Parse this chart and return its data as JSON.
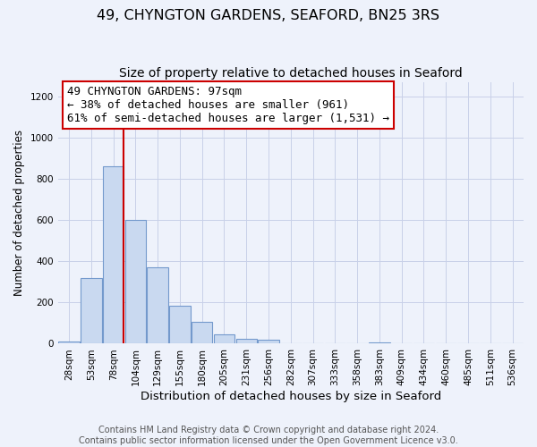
{
  "title": "49, CHYNGTON GARDENS, SEAFORD, BN25 3RS",
  "subtitle": "Size of property relative to detached houses in Seaford",
  "xlabel": "Distribution of detached houses by size in Seaford",
  "ylabel": "Number of detached properties",
  "bin_labels": [
    "28sqm",
    "53sqm",
    "78sqm",
    "104sqm",
    "129sqm",
    "155sqm",
    "180sqm",
    "205sqm",
    "231sqm",
    "256sqm",
    "282sqm",
    "307sqm",
    "333sqm",
    "358sqm",
    "383sqm",
    "409sqm",
    "434sqm",
    "460sqm",
    "485sqm",
    "511sqm",
    "536sqm"
  ],
  "bar_values": [
    12,
    320,
    860,
    600,
    370,
    185,
    105,
    47,
    22,
    20,
    0,
    0,
    0,
    0,
    8,
    0,
    0,
    0,
    0,
    0,
    0
  ],
  "bar_color": "#c9d9f0",
  "bar_edgecolor": "#7399cc",
  "property_line_color": "#cc0000",
  "annotation_line1": "49 CHYNGTON GARDENS: 97sqm",
  "annotation_line2": "← 38% of detached houses are smaller (961)",
  "annotation_line3": "61% of semi-detached houses are larger (1,531) →",
  "annotation_box_edgecolor": "#cc0000",
  "annotation_box_facecolor": "#ffffff",
  "ylim": [
    0,
    1270
  ],
  "yticks": [
    0,
    200,
    400,
    600,
    800,
    1000,
    1200
  ],
  "footer_line1": "Contains HM Land Registry data © Crown copyright and database right 2024.",
  "footer_line2": "Contains public sector information licensed under the Open Government Licence v3.0.",
  "background_color": "#eef2fb",
  "grid_color": "#c8d0e8",
  "title_fontsize": 11.5,
  "subtitle_fontsize": 10,
  "xlabel_fontsize": 9.5,
  "ylabel_fontsize": 8.5,
  "tick_fontsize": 7.5,
  "annotation_fontsize": 9,
  "footer_fontsize": 7
}
